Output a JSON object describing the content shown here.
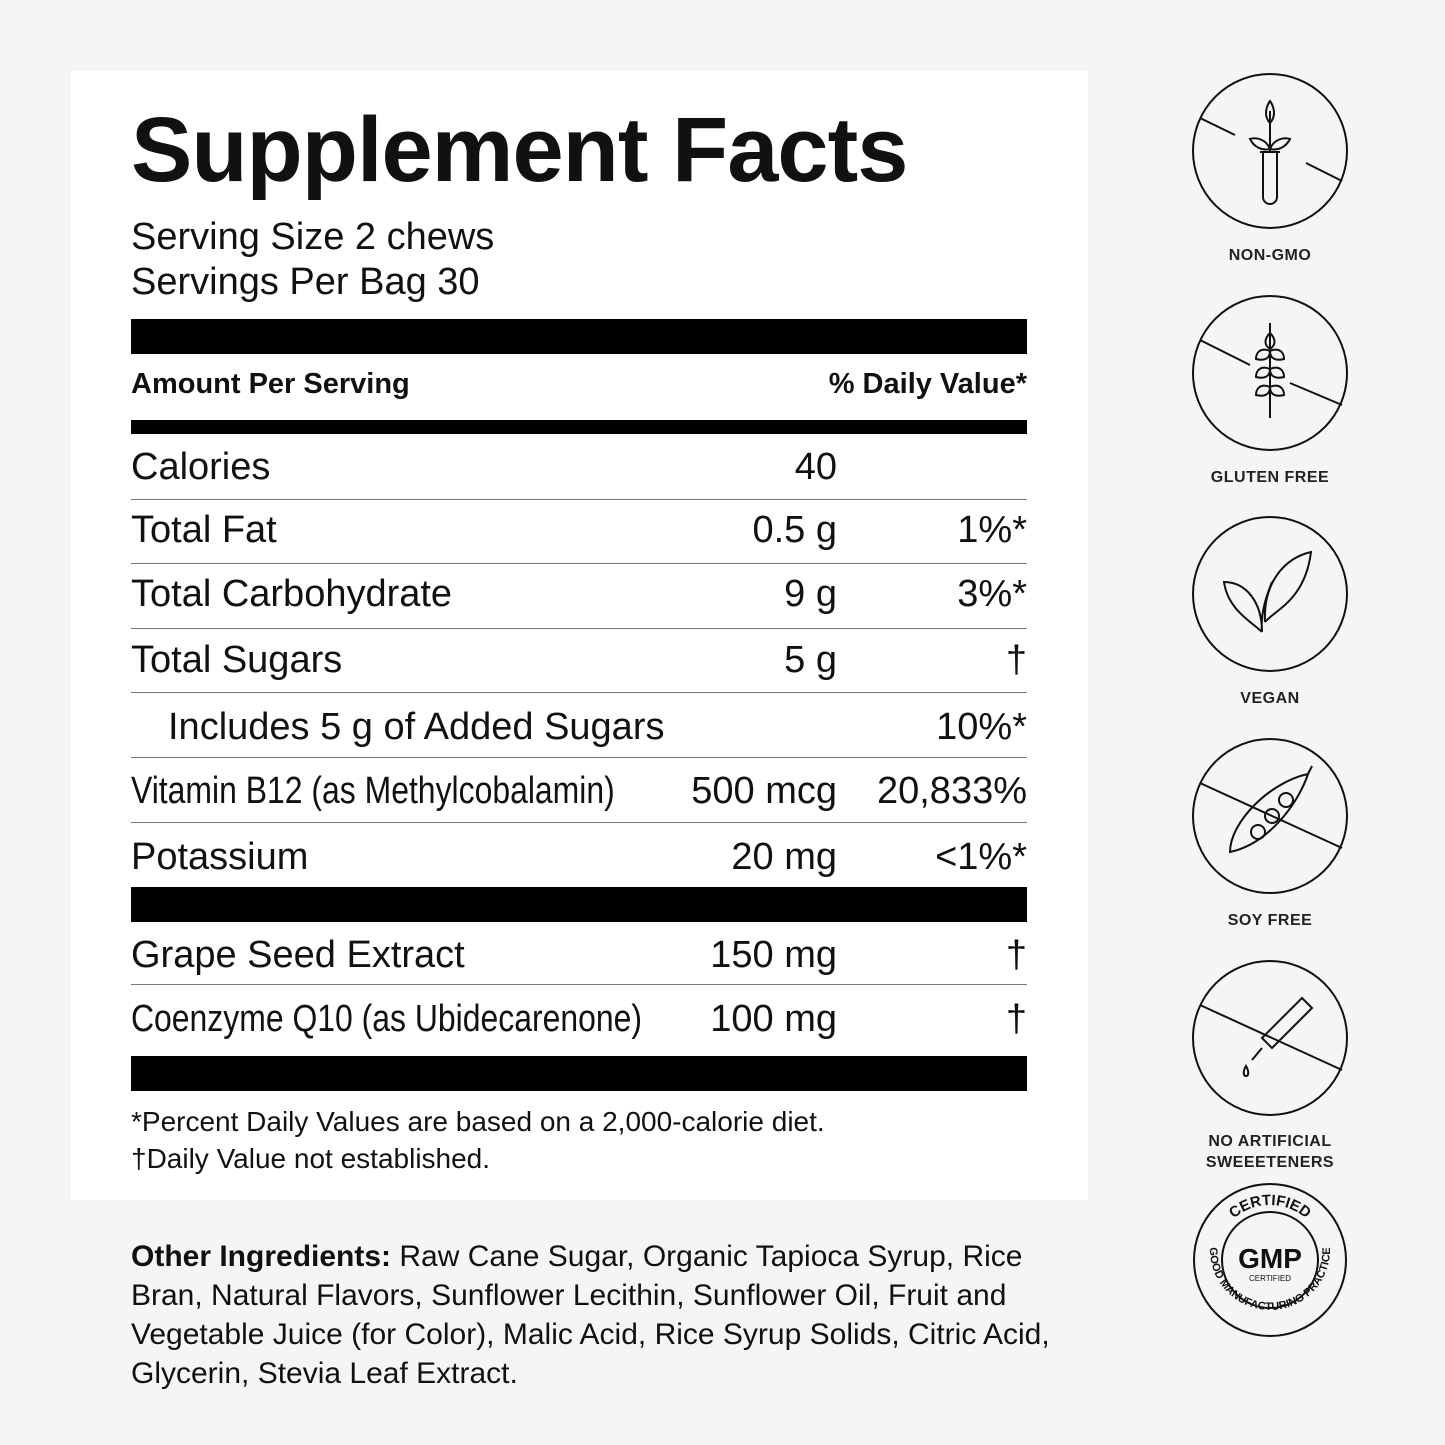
{
  "title": "Supplement Facts",
  "serving_size": "Serving Size 2 chews",
  "servings_per": "Servings Per Bag 30",
  "header": {
    "amount": "Amount Per Serving",
    "dv": "% Daily Value*"
  },
  "rows": [
    {
      "name": "Calories",
      "amount": "40",
      "dv": ""
    },
    {
      "name": "Total Fat",
      "amount": "0.5 g",
      "dv": "1%*"
    },
    {
      "name": "Total Carbohydrate",
      "amount": "9 g",
      "dv": "3%*"
    },
    {
      "name": "Total Sugars",
      "amount": "5 g",
      "dv": "†"
    },
    {
      "name": "Includes 5 g of Added Sugars",
      "amount": "",
      "dv": "10%*"
    },
    {
      "name": "Vitamin B12 (as Methylcobalamin)",
      "amount": "500 mcg",
      "dv": "20,833%"
    },
    {
      "name": "Potassium",
      "amount": "20 mg",
      "dv": "<1%*"
    },
    {
      "name": "Grape Seed Extract",
      "amount": "150 mg",
      "dv": "†"
    },
    {
      "name": "Coenzyme Q10 (as Ubidecarenone)",
      "amount": "100 mg",
      "dv": "†"
    }
  ],
  "footnotes": [
    "*Percent Daily Values are based on a 2,000-calorie diet.",
    "†Daily Value not established."
  ],
  "ingredients": {
    "label": "Other Ingredients:",
    "text": " Raw Cane Sugar, Organic Tapioca Syrup, Rice Bran, Natural Flavors, Sunflower Lecithin, Sunflower Oil, Fruit and Vegetable Juice (for Color), Malic Acid, Rice Syrup Solids, Citric Acid, Glycerin, Stevia Leaf Extract."
  },
  "badges": [
    {
      "icon": "non-gmo-icon",
      "label": "NON-GMO"
    },
    {
      "icon": "wheat-icon",
      "label": "GLUTEN FREE"
    },
    {
      "icon": "leaves-icon",
      "label": "VEGAN"
    },
    {
      "icon": "soy-pea-icon",
      "label": "SOY FREE"
    },
    {
      "icon": "dropper-icon",
      "label": "NO ARTIFICIAL SWEEETENERS"
    }
  ],
  "gmp_seal": {
    "top": "CERTIFIED",
    "center": "GMP",
    "sub": "CERTIFIED",
    "ring": "GOOD MANUFACTURING PRACTICE"
  }
}
